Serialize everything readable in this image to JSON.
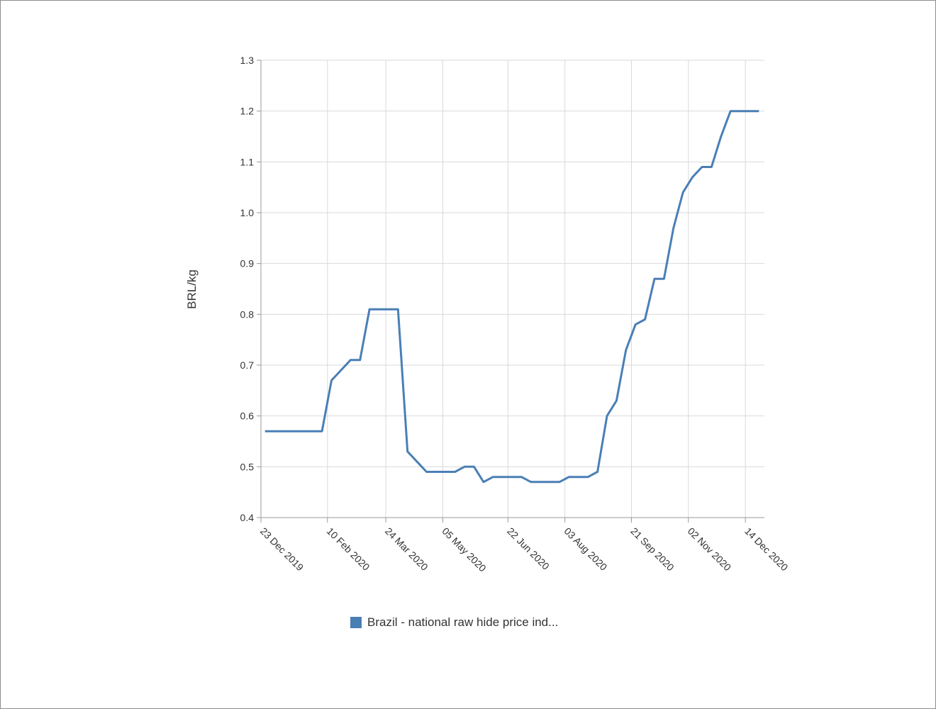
{
  "chart_data": {
    "type": "line",
    "ylabel": "BRL/kg",
    "xlabel": "",
    "ylim": [
      0.4,
      1.3
    ],
    "yticks": [
      "0.4",
      "0.5",
      "0.6",
      "0.7",
      "0.8",
      "0.9",
      "1.0",
      "1.1",
      "1.2",
      "1.3"
    ],
    "xlim": [
      "2019-12-23",
      "2020-12-28"
    ],
    "xtick_dates": [
      "2019-12-23",
      "2020-02-10",
      "2020-03-24",
      "2020-05-05",
      "2020-06-22",
      "2020-08-03",
      "2020-09-21",
      "2020-11-02",
      "2020-12-14"
    ],
    "xtick_labels": [
      "23 Dec 2019",
      "10 Feb 2020",
      "24 Mar 2020",
      "05 May 2020",
      "22 Jun 2020",
      "03 Aug 2020",
      "21 Sep 2020",
      "02 Nov 2020",
      "14 Dec 2020"
    ],
    "grid": true,
    "legend_position": "bottom",
    "series": [
      {
        "name": "Brazil - national raw hide price ind...",
        "color": "#4a7fb5",
        "x": [
          "2019-12-26",
          "2020-01-09",
          "2020-01-23",
          "2020-02-06",
          "2020-02-13",
          "2020-02-27",
          "2020-03-05",
          "2020-03-12",
          "2020-03-19",
          "2020-03-26",
          "2020-04-02",
          "2020-04-09",
          "2020-04-16",
          "2020-04-23",
          "2020-04-30",
          "2020-05-07",
          "2020-05-14",
          "2020-05-21",
          "2020-05-28",
          "2020-06-04",
          "2020-06-11",
          "2020-06-18",
          "2020-06-25",
          "2020-07-02",
          "2020-07-09",
          "2020-07-16",
          "2020-07-23",
          "2020-07-30",
          "2020-08-06",
          "2020-08-13",
          "2020-08-20",
          "2020-08-27",
          "2020-09-03",
          "2020-09-10",
          "2020-09-17",
          "2020-09-24",
          "2020-10-01",
          "2020-10-08",
          "2020-10-15",
          "2020-10-22",
          "2020-10-29",
          "2020-11-05",
          "2020-11-12",
          "2020-11-19",
          "2020-11-26",
          "2020-12-03",
          "2020-12-10",
          "2020-12-17",
          "2020-12-24"
        ],
        "values": [
          0.57,
          0.57,
          0.57,
          0.57,
          0.67,
          0.71,
          0.71,
          0.81,
          0.81,
          0.81,
          0.81,
          0.53,
          0.51,
          0.49,
          0.49,
          0.49,
          0.49,
          0.5,
          0.5,
          0.47,
          0.48,
          0.48,
          0.48,
          0.48,
          0.47,
          0.47,
          0.47,
          0.47,
          0.48,
          0.48,
          0.48,
          0.49,
          0.6,
          0.63,
          0.73,
          0.78,
          0.79,
          0.87,
          0.87,
          0.97,
          1.04,
          1.07,
          1.09,
          1.09,
          1.15,
          1.2,
          1.2,
          1.2,
          1.2
        ]
      }
    ]
  }
}
